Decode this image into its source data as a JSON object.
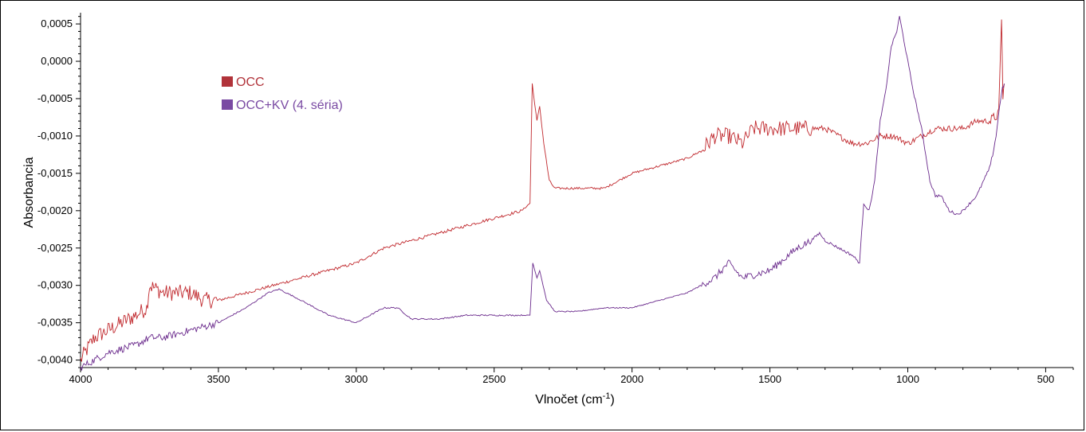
{
  "chart_data": {
    "type": "line",
    "title": "",
    "xlabel": "Vlnočet (cm",
    "xlabel_sup": "-1",
    "xlabel_end": ")",
    "ylabel": "Absorbancia",
    "xlim": [
      4000,
      400
    ],
    "ylim": [
      -0.0041,
      0.00065
    ],
    "x_reversed": true,
    "xticks": [
      4000,
      3500,
      3000,
      2500,
      2000,
      1500,
      1000,
      500
    ],
    "xtick_labels": [
      "4000",
      "3500",
      "3000",
      "2500",
      "2000",
      "1500",
      "1000",
      "500"
    ],
    "yticks": [
      0.0005,
      0.0,
      -0.0005,
      -0.001,
      -0.0015,
      -0.002,
      -0.0025,
      -0.003,
      -0.0035,
      -0.004
    ],
    "ytick_labels": [
      "0,0005",
      "0,0000",
      "-0,0005",
      "-0,0010",
      "-0,0015",
      "-0,0020",
      "-0,0025",
      "-0,0030",
      "-0,0035",
      "-0,0040"
    ],
    "grid": false,
    "legend_position": "top-left",
    "series": [
      {
        "name": "OCC",
        "color": "#c0282d",
        "legend_color": "#b1333a",
        "points": [
          [
            4000,
            -0.004
          ],
          [
            3950,
            -0.0037
          ],
          [
            3900,
            -0.0036
          ],
          [
            3850,
            -0.0035
          ],
          [
            3800,
            -0.0034
          ],
          [
            3760,
            -0.0033
          ],
          [
            3750,
            -0.003
          ],
          [
            3700,
            -0.0031
          ],
          [
            3650,
            -0.0031
          ],
          [
            3600,
            -0.0031
          ],
          [
            3550,
            -0.0032
          ],
          [
            3500,
            -0.0032
          ],
          [
            3400,
            -0.0031
          ],
          [
            3300,
            -0.003
          ],
          [
            3200,
            -0.0029
          ],
          [
            3100,
            -0.0028
          ],
          [
            3000,
            -0.0027
          ],
          [
            2900,
            -0.0025
          ],
          [
            2800,
            -0.0024
          ],
          [
            2700,
            -0.0023
          ],
          [
            2600,
            -0.0022
          ],
          [
            2500,
            -0.0021
          ],
          [
            2400,
            -0.002
          ],
          [
            2370,
            -0.0019
          ],
          [
            2362,
            -0.0003
          ],
          [
            2345,
            -0.0008
          ],
          [
            2335,
            -0.0006
          ],
          [
            2320,
            -0.0011
          ],
          [
            2300,
            -0.0016
          ],
          [
            2280,
            -0.0017
          ],
          [
            2200,
            -0.0017
          ],
          [
            2100,
            -0.0017
          ],
          [
            2000,
            -0.0015
          ],
          [
            1900,
            -0.0014
          ],
          [
            1800,
            -0.0013
          ],
          [
            1750,
            -0.0012
          ],
          [
            1700,
            -0.001
          ],
          [
            1650,
            -0.001
          ],
          [
            1600,
            -0.0011
          ],
          [
            1560,
            -0.0009
          ],
          [
            1500,
            -0.0009
          ],
          [
            1400,
            -0.0009
          ],
          [
            1300,
            -0.0009
          ],
          [
            1250,
            -0.001
          ],
          [
            1200,
            -0.0011
          ],
          [
            1150,
            -0.0011
          ],
          [
            1100,
            -0.001
          ],
          [
            1050,
            -0.001
          ],
          [
            1000,
            -0.0011
          ],
          [
            950,
            -0.001
          ],
          [
            900,
            -0.0009
          ],
          [
            850,
            -0.0009
          ],
          [
            800,
            -0.0009
          ],
          [
            750,
            -0.0008
          ],
          [
            700,
            -0.0008
          ],
          [
            670,
            -0.0007
          ],
          [
            660,
            0.0006
          ],
          [
            655,
            -0.0005
          ],
          [
            650,
            -0.0003
          ]
        ]
      },
      {
        "name": "OCC+KV (4. séria)",
        "color": "#6a2a8c",
        "legend_color": "#7a4aa3",
        "points": [
          [
            4000,
            -0.0041
          ],
          [
            3900,
            -0.0039
          ],
          [
            3800,
            -0.0038
          ],
          [
            3750,
            -0.0037
          ],
          [
            3700,
            -0.0037
          ],
          [
            3600,
            -0.0036
          ],
          [
            3500,
            -0.0035
          ],
          [
            3400,
            -0.0033
          ],
          [
            3320,
            -0.0031
          ],
          [
            3280,
            -0.00305
          ],
          [
            3200,
            -0.0032
          ],
          [
            3100,
            -0.0034
          ],
          [
            3000,
            -0.0035
          ],
          [
            2950,
            -0.0034
          ],
          [
            2900,
            -0.0033
          ],
          [
            2850,
            -0.0033
          ],
          [
            2800,
            -0.00345
          ],
          [
            2700,
            -0.00345
          ],
          [
            2600,
            -0.0034
          ],
          [
            2500,
            -0.0034
          ],
          [
            2370,
            -0.0034
          ],
          [
            2360,
            -0.0027
          ],
          [
            2345,
            -0.0029
          ],
          [
            2335,
            -0.0028
          ],
          [
            2310,
            -0.0032
          ],
          [
            2280,
            -0.00335
          ],
          [
            2200,
            -0.00335
          ],
          [
            2100,
            -0.0033
          ],
          [
            2000,
            -0.0033
          ],
          [
            1900,
            -0.0032
          ],
          [
            1800,
            -0.0031
          ],
          [
            1700,
            -0.0029
          ],
          [
            1650,
            -0.0027
          ],
          [
            1600,
            -0.0029
          ],
          [
            1500,
            -0.0028
          ],
          [
            1400,
            -0.0025
          ],
          [
            1350,
            -0.0024
          ],
          [
            1320,
            -0.0023
          ],
          [
            1300,
            -0.0024
          ],
          [
            1250,
            -0.0025
          ],
          [
            1200,
            -0.0026
          ],
          [
            1175,
            -0.0027
          ],
          [
            1160,
            -0.0019
          ],
          [
            1140,
            -0.002
          ],
          [
            1120,
            -0.0016
          ],
          [
            1100,
            -0.0008
          ],
          [
            1080,
            -0.0004
          ],
          [
            1060,
            0.0002
          ],
          [
            1040,
            0.0004
          ],
          [
            1030,
            0.0006
          ],
          [
            1010,
            0.0002
          ],
          [
            1000,
            0.0
          ],
          [
            980,
            -0.0004
          ],
          [
            950,
            -0.0009
          ],
          [
            920,
            -0.0016
          ],
          [
            900,
            -0.0018
          ],
          [
            880,
            -0.0018
          ],
          [
            850,
            -0.002
          ],
          [
            820,
            -0.00205
          ],
          [
            800,
            -0.002
          ],
          [
            750,
            -0.0018
          ],
          [
            700,
            -0.0014
          ],
          [
            680,
            -0.001
          ],
          [
            660,
            -0.0004
          ],
          [
            650,
            -0.0003
          ]
        ]
      }
    ]
  }
}
